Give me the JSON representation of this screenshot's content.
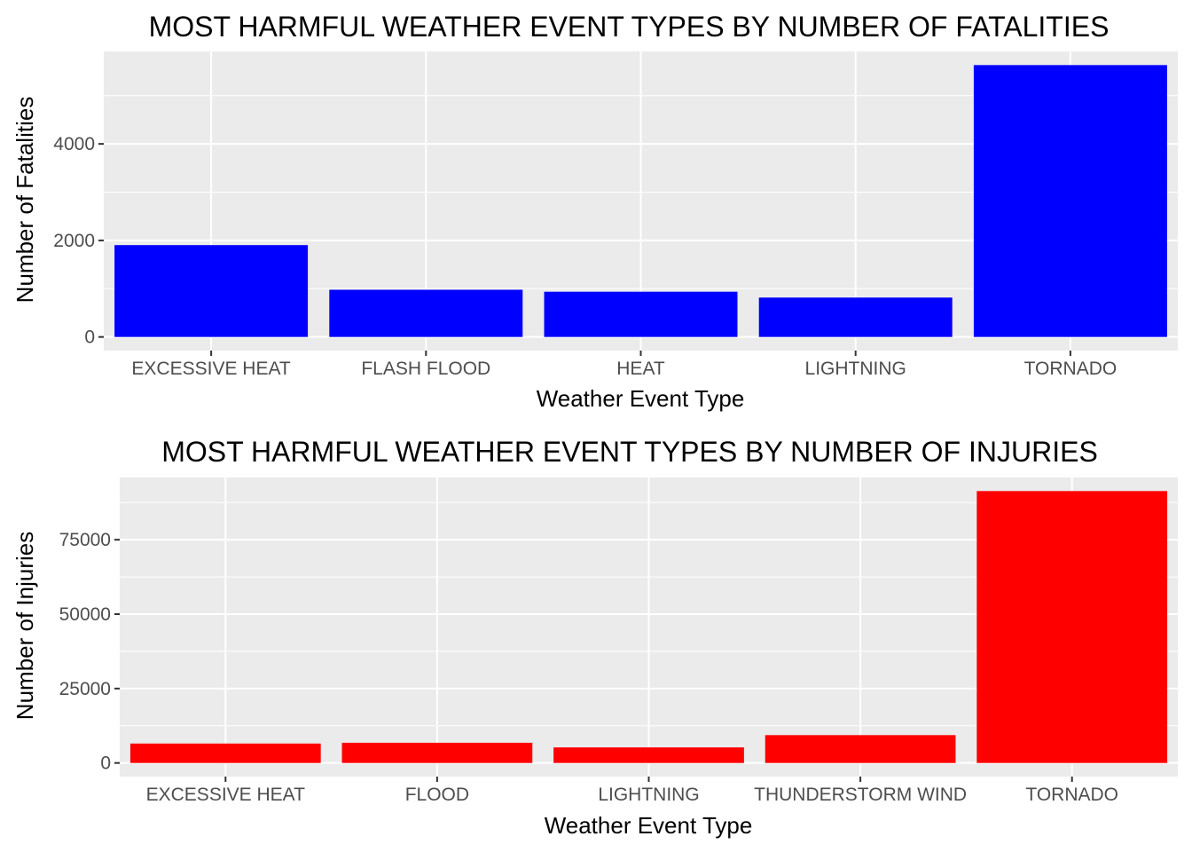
{
  "chart_data": [
    {
      "type": "bar",
      "title": "MOST HARMFUL WEATHER EVENT TYPES BY NUMBER OF FATALITIES",
      "xlabel": "Weather Event Type",
      "ylabel": "Number of Fatalities",
      "categories": [
        "EXCESSIVE HEAT",
        "FLASH FLOOD",
        "HEAT",
        "LIGHTNING",
        "TORNADO"
      ],
      "values": [
        1903,
        978,
        937,
        816,
        5633
      ],
      "yticks": [
        0,
        2000,
        4000
      ],
      "ytick_labels": [
        "0",
        "2000",
        "4000"
      ],
      "ylim": [
        -282,
        5915
      ],
      "bar_color": "#0000ff",
      "grid": true
    },
    {
      "type": "bar",
      "title": "MOST HARMFUL WEATHER EVENT TYPES BY NUMBER OF INJURIES",
      "xlabel": "Weather Event Type",
      "ylabel": "Number of Injuries",
      "categories": [
        "EXCESSIVE HEAT",
        "FLOOD",
        "LIGHTNING",
        "THUNDERSTORM WIND",
        "TORNADO"
      ],
      "values": [
        6525,
        6789,
        5230,
        9353,
        91346
      ],
      "yticks": [
        0,
        25000,
        50000,
        75000
      ],
      "ytick_labels": [
        "0",
        "25000",
        "50000",
        "75000"
      ],
      "ylim": [
        -4567,
        95913
      ],
      "bar_color": "#ff0000",
      "grid": true
    }
  ]
}
